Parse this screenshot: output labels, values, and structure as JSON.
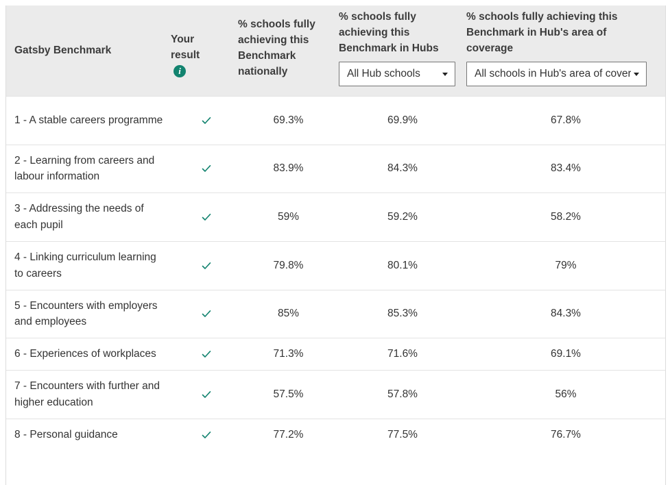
{
  "table": {
    "headers": {
      "benchmark": "Gatsby Benchmark",
      "your_result": "Your result",
      "national": "% schools fully achieving this Benchmark nationally",
      "hubs": "% schools fully achieving this Benchmark in Hubs",
      "area": "% schools fully achieving this Benchmark in Hub's area of coverage"
    },
    "info_icon_glyph": "i",
    "hubs_select": {
      "selected": "All Hub schools"
    },
    "area_select": {
      "selected": "All schools in Hub's area of coverage"
    },
    "check_icon": "check-icon",
    "rows": [
      {
        "benchmark": "1 - A stable careers programme",
        "national": "69.3%",
        "hubs": "69.9%",
        "area": "67.8%",
        "height": 71
      },
      {
        "benchmark": "2 - Learning from careers and labour information",
        "national": "83.9%",
        "hubs": "84.3%",
        "area": "83.4%",
        "height": 70
      },
      {
        "benchmark": "3 - Addressing the needs of each pupil",
        "national": "59%",
        "hubs": "59.2%",
        "area": "58.2%",
        "height": 71
      },
      {
        "benchmark": "4 - Linking curriculum learning to careers",
        "national": "79.8%",
        "hubs": "80.1%",
        "area": "79%",
        "height": 71
      },
      {
        "benchmark": "5 - Encounters with employers and employees",
        "national": "85%",
        "hubs": "85.3%",
        "area": "84.3%",
        "height": 70
      },
      {
        "benchmark": "6 - Experiences of workplaces",
        "national": "71.3%",
        "hubs": "71.6%",
        "area": "69.1%",
        "height": 47
      },
      {
        "benchmark": "7 - Encounters with further and higher education",
        "national": "57.5%",
        "hubs": "57.8%",
        "area": "56%",
        "height": 71
      },
      {
        "benchmark": "8 - Personal guidance",
        "national": "77.2%",
        "hubs": "77.5%",
        "area": "76.7%",
        "height": 47
      }
    ]
  },
  "colors": {
    "accent": "#12836f",
    "header_bg": "#ebebeb",
    "row_border": "#e3e3e3"
  }
}
